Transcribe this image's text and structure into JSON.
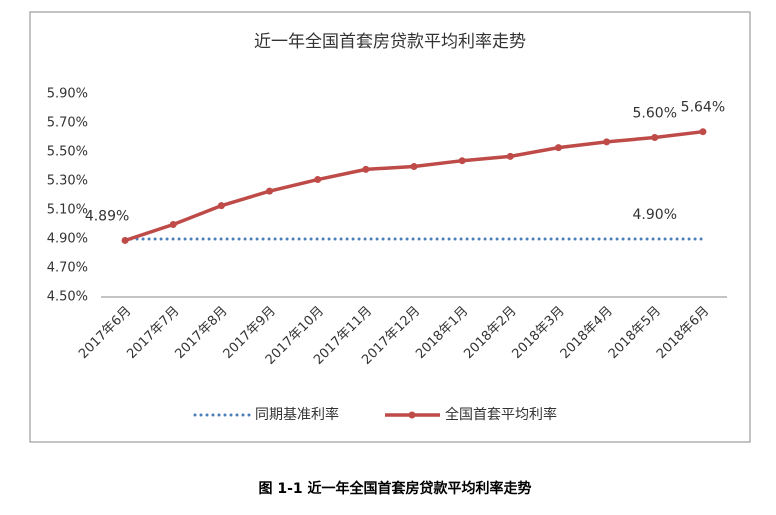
{
  "chart_data": {
    "type": "line",
    "title": "近一年全国首套房贷款平均利率走势",
    "categories": [
      "2017年6月",
      "2017年7月",
      "2017年8月",
      "2017年9月",
      "2017年10月",
      "2017年11月",
      "2017年12月",
      "2018年1月",
      "2018年2月",
      "2018年3月",
      "2018年4月",
      "2018年5月",
      "2018年6月"
    ],
    "series": [
      {
        "name": "同期基准利率",
        "color": "#4a7ebb",
        "style": "dotted",
        "values": [
          4.9,
          4.9,
          4.9,
          4.9,
          4.9,
          4.9,
          4.9,
          4.9,
          4.9,
          4.9,
          4.9,
          4.9,
          4.9
        ],
        "value_labels": [
          null,
          null,
          null,
          null,
          null,
          null,
          null,
          null,
          null,
          null,
          null,
          "4.90%",
          null
        ]
      },
      {
        "name": "全国首套平均利率",
        "color": "#be4b48",
        "style": "solid",
        "markers": true,
        "values": [
          4.89,
          5.0,
          5.13,
          5.23,
          5.31,
          5.38,
          5.4,
          5.44,
          5.47,
          5.53,
          5.57,
          5.6,
          5.64
        ],
        "value_labels": [
          "4.89%",
          null,
          null,
          null,
          null,
          null,
          null,
          null,
          null,
          null,
          null,
          "5.60%",
          "5.64%"
        ]
      }
    ],
    "ylim": [
      4.5,
      5.9
    ],
    "yticks": [
      {
        "value": 4.5,
        "label": "4.50%"
      },
      {
        "value": 4.7,
        "label": "4.70%"
      },
      {
        "value": 4.9,
        "label": "4.90%"
      },
      {
        "value": 5.1,
        "label": "5.10%"
      },
      {
        "value": 5.3,
        "label": "5.30%"
      },
      {
        "value": 5.5,
        "label": "5.50%"
      },
      {
        "value": 5.7,
        "label": "5.70%"
      },
      {
        "value": 5.9,
        "label": "5.90%"
      }
    ],
    "grid": false,
    "legend": "bottom"
  },
  "caption": "图 1-1  近一年全国首套房贷款平均利率走势"
}
